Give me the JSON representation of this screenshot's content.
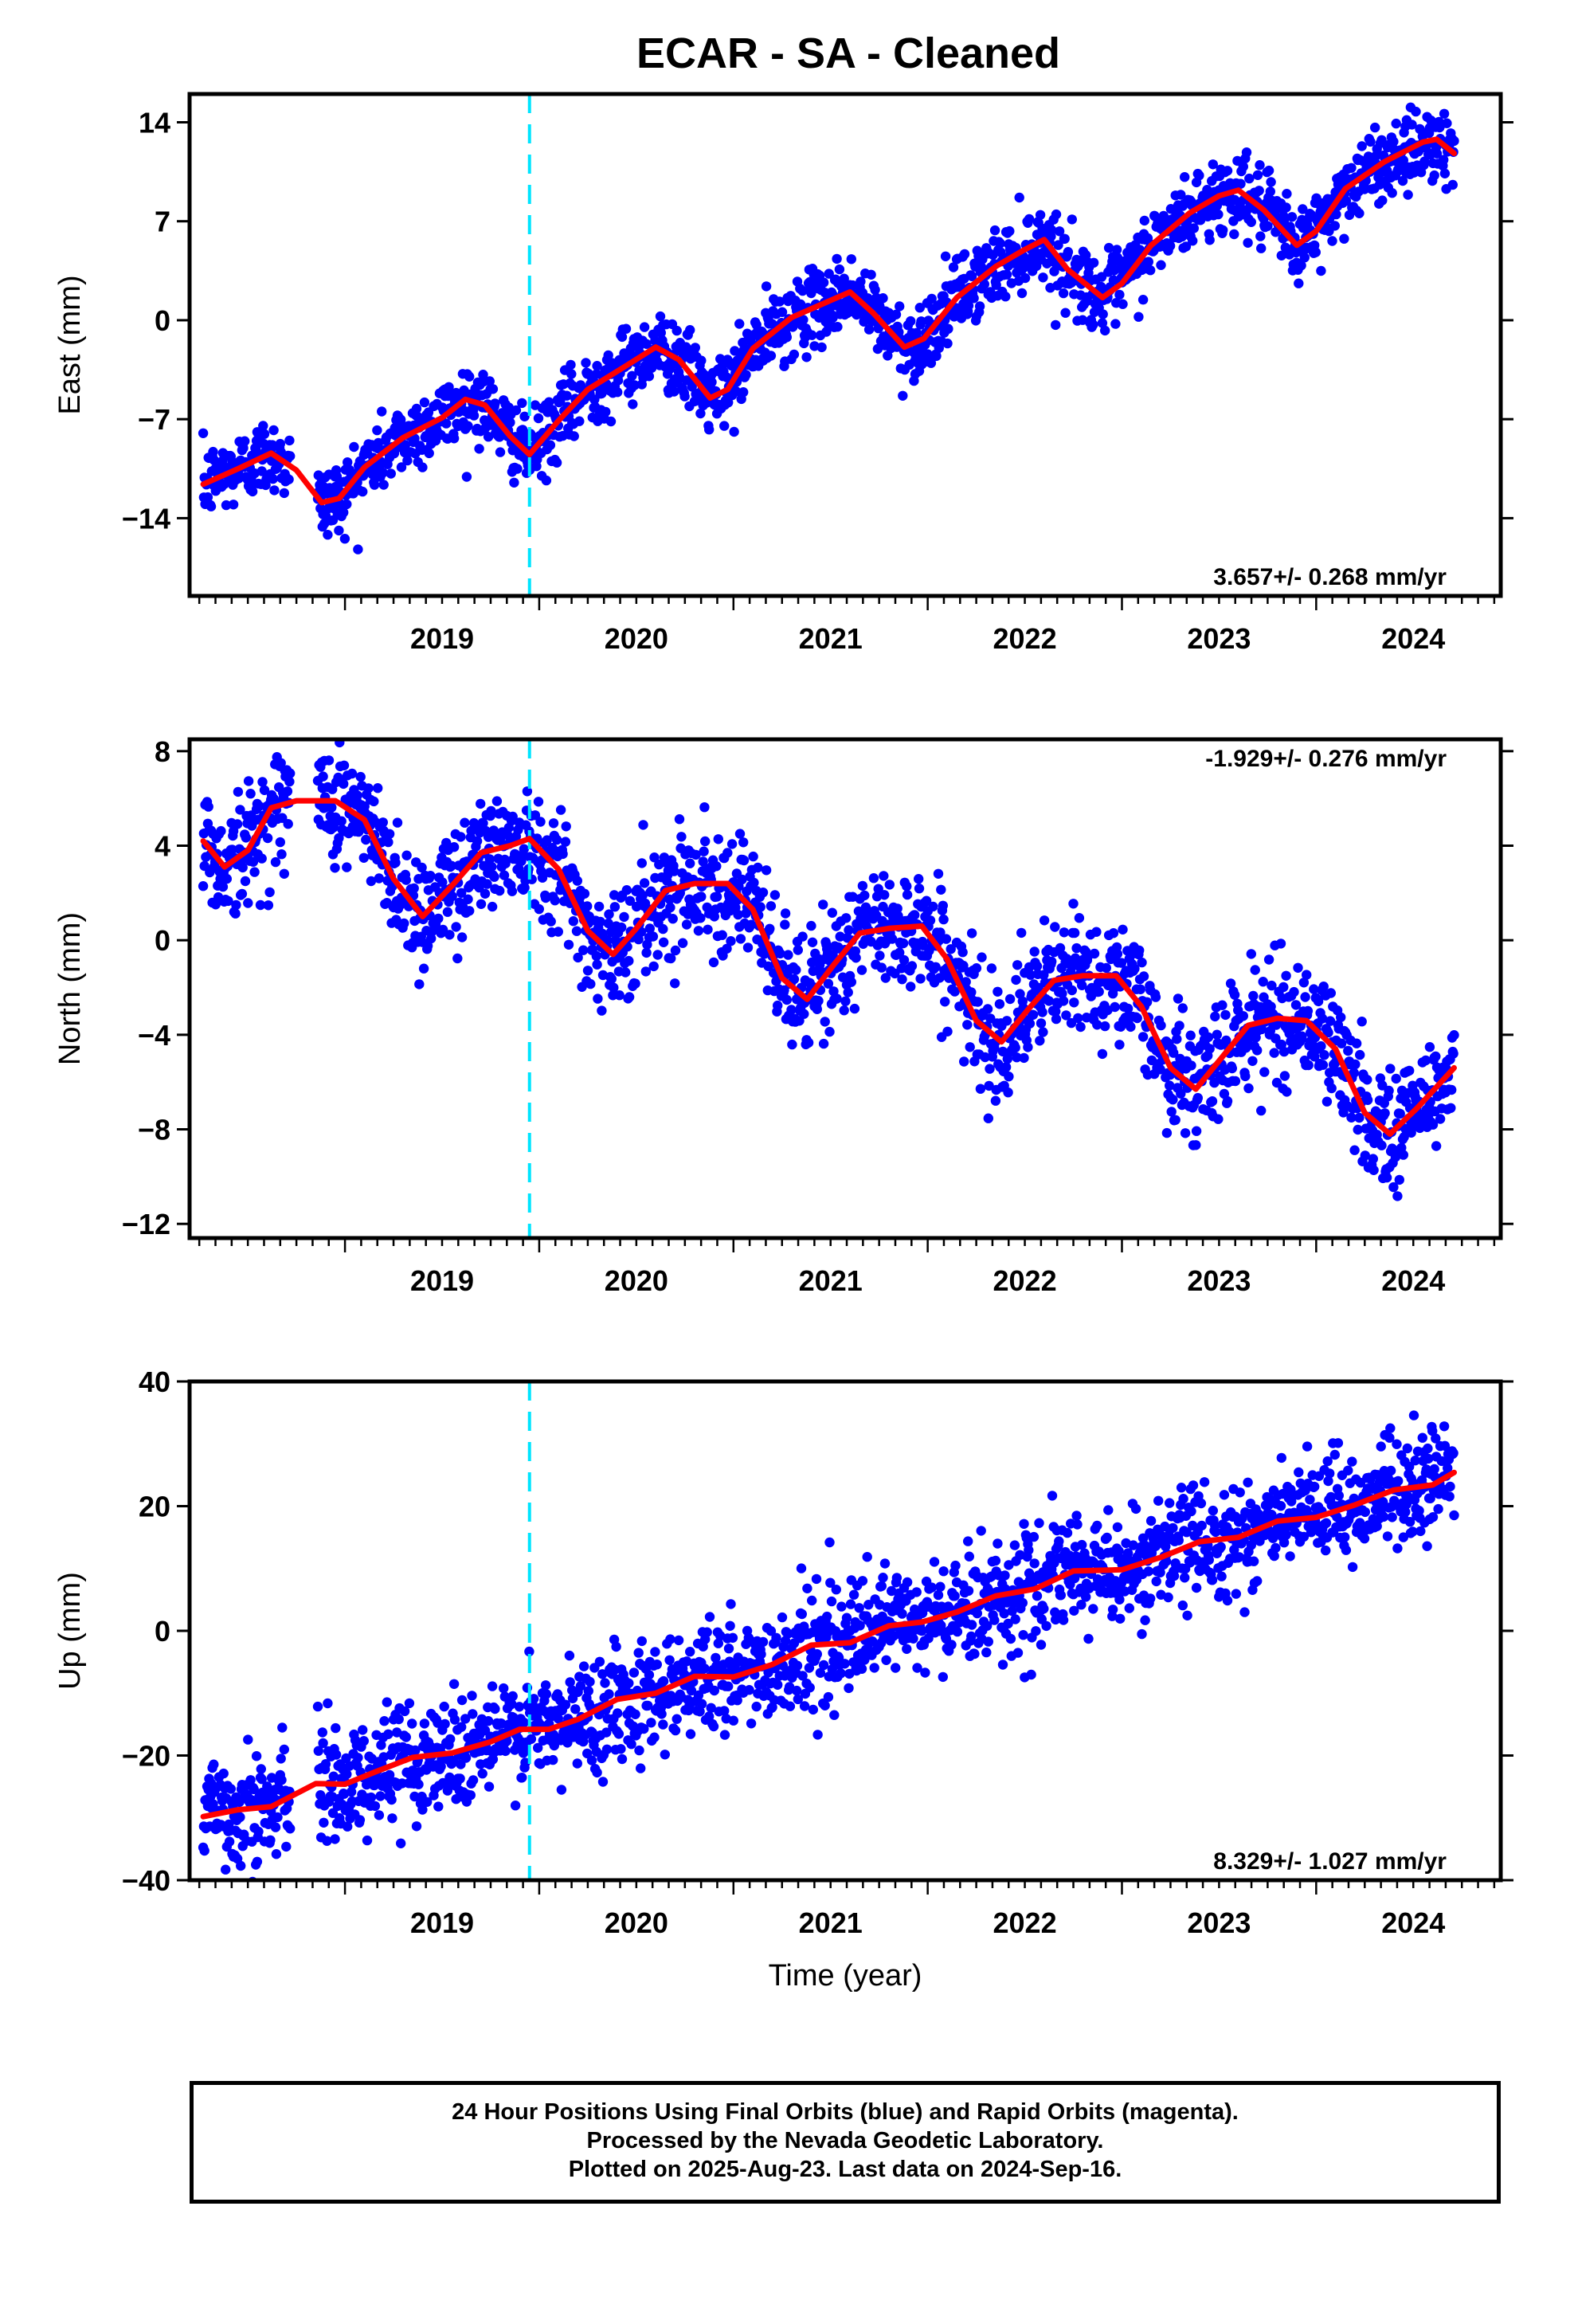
{
  "title": "ECAR  - SA - Cleaned",
  "footer": {
    "line1": "24 Hour Positions Using Final Orbits (blue) and Rapid Orbits (magenta).",
    "line2": "Processed by the Nevada Geodetic Laboratory.",
    "line3": "Plotted on 2025-Aug-23. Last data on 2024-Sep-16."
  },
  "colors": {
    "data_points": "#0000ff",
    "model_curve": "#ff0000",
    "event_line": "#00e5ff"
  },
  "chart_data": [
    {
      "type": "scatter",
      "ylabel": "East (mm)",
      "xlabel": "",
      "xlim": [
        2018.2,
        2024.95
      ],
      "ylim": [
        -19.5,
        16
      ],
      "yticks": [
        -14,
        -7,
        0,
        7,
        14
      ],
      "xticks": [
        2019,
        2020,
        2021,
        2022,
        2023,
        2024
      ],
      "event_line_year": 2019.95,
      "rate_label": "3.657+/- 0.268 mm/yr",
      "rate_label_position": "bottom-right",
      "data_start": 2018.27,
      "data_end": 2024.71,
      "model": [
        [
          2018.27,
          -11.6
        ],
        [
          2018.45,
          -10.5
        ],
        [
          2018.62,
          -9.4
        ],
        [
          2018.75,
          -10.6
        ],
        [
          2018.88,
          -12.9
        ],
        [
          2018.97,
          -12.6
        ],
        [
          2019.1,
          -10.4
        ],
        [
          2019.3,
          -8.3
        ],
        [
          2019.5,
          -6.9
        ],
        [
          2019.62,
          -5.6
        ],
        [
          2019.72,
          -6.0
        ],
        [
          2019.85,
          -8.2
        ],
        [
          2019.95,
          -9.5
        ],
        [
          2020.1,
          -7.1
        ],
        [
          2020.25,
          -4.9
        ],
        [
          2020.45,
          -3.2
        ],
        [
          2020.6,
          -1.9
        ],
        [
          2020.72,
          -2.8
        ],
        [
          2020.88,
          -5.5
        ],
        [
          2020.97,
          -4.9
        ],
        [
          2021.1,
          -2.0
        ],
        [
          2021.3,
          0.2
        ],
        [
          2021.5,
          1.4
        ],
        [
          2021.6,
          2.0
        ],
        [
          2021.72,
          0.5
        ],
        [
          2021.88,
          -1.9
        ],
        [
          2021.98,
          -1.3
        ],
        [
          2022.15,
          1.6
        ],
        [
          2022.35,
          3.8
        ],
        [
          2022.5,
          5.0
        ],
        [
          2022.6,
          5.7
        ],
        [
          2022.72,
          3.6
        ],
        [
          2022.9,
          1.6
        ],
        [
          2023.0,
          2.6
        ],
        [
          2023.15,
          5.3
        ],
        [
          2023.35,
          7.6
        ],
        [
          2023.5,
          8.8
        ],
        [
          2023.6,
          9.2
        ],
        [
          2023.73,
          7.8
        ],
        [
          2023.9,
          5.3
        ],
        [
          2024.0,
          6.3
        ],
        [
          2024.15,
          9.3
        ],
        [
          2024.35,
          11.2
        ],
        [
          2024.55,
          12.6
        ],
        [
          2024.62,
          12.8
        ],
        [
          2024.71,
          11.8
        ]
      ],
      "scatter_sd": 1.3
    },
    {
      "type": "scatter",
      "ylabel": "North (mm)",
      "xlabel": "",
      "xlim": [
        2018.2,
        2024.95
      ],
      "ylim": [
        -12.6,
        8.5
      ],
      "yticks": [
        -12,
        -8,
        -4,
        0,
        4,
        8
      ],
      "xticks": [
        2019,
        2020,
        2021,
        2022,
        2023,
        2024
      ],
      "event_line_year": 2019.95,
      "rate_label": "-1.929+/- 0.276 mm/yr",
      "rate_label_position": "top-right",
      "data_start": 2018.27,
      "data_end": 2024.71,
      "model": [
        [
          2018.27,
          4.2
        ],
        [
          2018.38,
          3.1
        ],
        [
          2018.5,
          3.8
        ],
        [
          2018.62,
          5.6
        ],
        [
          2018.75,
          5.9
        ],
        [
          2018.95,
          5.9
        ],
        [
          2019.1,
          5.1
        ],
        [
          2019.25,
          2.6
        ],
        [
          2019.4,
          1.0
        ],
        [
          2019.55,
          2.3
        ],
        [
          2019.7,
          3.7
        ],
        [
          2019.85,
          4.0
        ],
        [
          2019.95,
          4.3
        ],
        [
          2020.1,
          3.0
        ],
        [
          2020.25,
          0.4
        ],
        [
          2020.38,
          -0.6
        ],
        [
          2020.5,
          0.5
        ],
        [
          2020.65,
          2.1
        ],
        [
          2020.8,
          2.4
        ],
        [
          2020.97,
          2.4
        ],
        [
          2021.1,
          1.3
        ],
        [
          2021.25,
          -1.6
        ],
        [
          2021.38,
          -2.5
        ],
        [
          2021.52,
          -1.0
        ],
        [
          2021.65,
          0.3
        ],
        [
          2021.8,
          0.5
        ],
        [
          2021.97,
          0.6
        ],
        [
          2022.1,
          -0.8
        ],
        [
          2022.25,
          -3.4
        ],
        [
          2022.38,
          -4.3
        ],
        [
          2022.52,
          -2.9
        ],
        [
          2022.65,
          -1.7
        ],
        [
          2022.8,
          -1.5
        ],
        [
          2022.97,
          -1.5
        ],
        [
          2023.1,
          -2.8
        ],
        [
          2023.25,
          -5.4
        ],
        [
          2023.38,
          -6.3
        ],
        [
          2023.52,
          -4.9
        ],
        [
          2023.65,
          -3.6
        ],
        [
          2023.8,
          -3.3
        ],
        [
          2023.95,
          -3.4
        ],
        [
          2024.1,
          -4.6
        ],
        [
          2024.25,
          -7.3
        ],
        [
          2024.38,
          -8.2
        ],
        [
          2024.52,
          -7.1
        ],
        [
          2024.71,
          -5.4
        ]
      ],
      "scatter_sd": 1.25
    },
    {
      "type": "scatter",
      "ylabel": "Up (mm)",
      "xlabel": "Time (year)",
      "xlim": [
        2018.2,
        2024.95
      ],
      "ylim": [
        -40,
        40
      ],
      "yticks": [
        -40,
        -20,
        0,
        20,
        40
      ],
      "xticks": [
        2019,
        2020,
        2021,
        2022,
        2023,
        2024
      ],
      "event_line_year": 2019.95,
      "rate_label": "8.329+/- 1.027 mm/yr",
      "rate_label_position": "bottom-right",
      "data_start": 2018.27,
      "data_end": 2024.71,
      "model": [
        [
          2018.27,
          -29.8
        ],
        [
          2018.45,
          -28.7
        ],
        [
          2018.62,
          -28.2
        ],
        [
          2018.85,
          -24.5
        ],
        [
          2019.0,
          -24.6
        ],
        [
          2019.15,
          -22.7
        ],
        [
          2019.35,
          -20.3
        ],
        [
          2019.55,
          -19.6
        ],
        [
          2019.75,
          -17.8
        ],
        [
          2019.9,
          -15.8
        ],
        [
          2020.05,
          -15.8
        ],
        [
          2020.2,
          -14.2
        ],
        [
          2020.4,
          -11.0
        ],
        [
          2020.6,
          -10.0
        ],
        [
          2020.8,
          -7.3
        ],
        [
          2021.0,
          -7.4
        ],
        [
          2021.2,
          -5.4
        ],
        [
          2021.4,
          -2.3
        ],
        [
          2021.6,
          -1.9
        ],
        [
          2021.8,
          0.8
        ],
        [
          2021.97,
          1.4
        ],
        [
          2022.15,
          3.0
        ],
        [
          2022.35,
          5.6
        ],
        [
          2022.55,
          6.7
        ],
        [
          2022.75,
          9.6
        ],
        [
          2023.0,
          9.8
        ],
        [
          2023.2,
          11.8
        ],
        [
          2023.4,
          14.3
        ],
        [
          2023.6,
          15.0
        ],
        [
          2023.8,
          17.6
        ],
        [
          2024.0,
          18.2
        ],
        [
          2024.2,
          20.2
        ],
        [
          2024.4,
          22.6
        ],
        [
          2024.6,
          23.4
        ],
        [
          2024.71,
          25.4
        ]
      ],
      "scatter_sd": 4.5
    }
  ]
}
